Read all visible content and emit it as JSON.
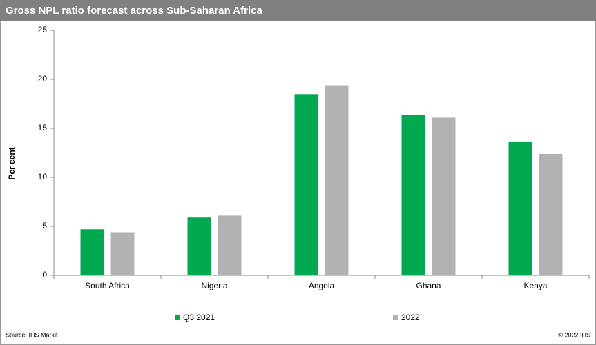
{
  "chart_data": {
    "type": "bar",
    "title": "Gross NPL ratio forecast across Sub-Saharan Africa",
    "y_label": "Per cent",
    "categories": [
      "South Africa",
      "Nigeria",
      "Angola",
      "Ghana",
      "Kenya"
    ],
    "series": [
      {
        "name": "Q3 2021",
        "color": "#00a94f",
        "values": [
          4.7,
          5.9,
          18.5,
          16.4,
          13.6
        ]
      },
      {
        "name": "2022",
        "color": "#b2b2b4",
        "values": [
          4.4,
          6.1,
          19.4,
          16.1,
          12.4
        ]
      }
    ],
    "ylim": [
      0,
      25
    ],
    "yticks": [
      0,
      5,
      10,
      15,
      20,
      25
    ],
    "grid": false,
    "source": "Source: IHS Markit",
    "copyright": "© 2022 IHS"
  }
}
